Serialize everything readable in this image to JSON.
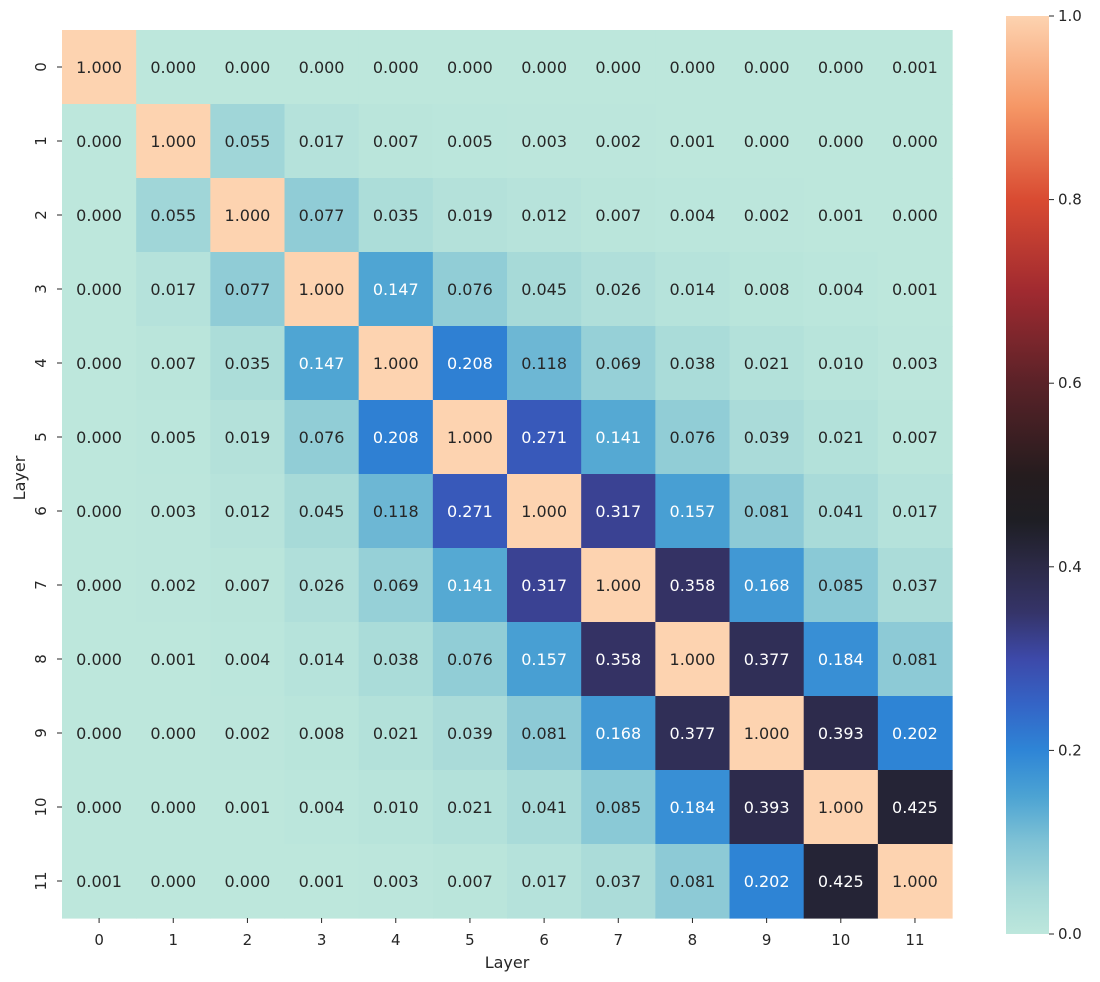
{
  "chart_data": {
    "type": "heatmap",
    "title": "",
    "xlabel": "Layer",
    "ylabel": "Layer",
    "x_categories": [
      "0",
      "1",
      "2",
      "3",
      "4",
      "5",
      "6",
      "7",
      "8",
      "9",
      "10",
      "11"
    ],
    "y_categories": [
      "0",
      "1",
      "2",
      "3",
      "4",
      "5",
      "6",
      "7",
      "8",
      "9",
      "10",
      "11"
    ],
    "values": [
      [
        1.0,
        0.0,
        0.0,
        0.0,
        0.0,
        0.0,
        0.0,
        0.0,
        0.0,
        0.0,
        0.0,
        0.001
      ],
      [
        0.0,
        1.0,
        0.055,
        0.017,
        0.007,
        0.005,
        0.003,
        0.002,
        0.001,
        0.0,
        0.0,
        0.0
      ],
      [
        0.0,
        0.055,
        1.0,
        0.077,
        0.035,
        0.019,
        0.012,
        0.007,
        0.004,
        0.002,
        0.001,
        0.0
      ],
      [
        0.0,
        0.017,
        0.077,
        1.0,
        0.147,
        0.076,
        0.045,
        0.026,
        0.014,
        0.008,
        0.004,
        0.001
      ],
      [
        0.0,
        0.007,
        0.035,
        0.147,
        1.0,
        0.208,
        0.118,
        0.069,
        0.038,
        0.021,
        0.01,
        0.003
      ],
      [
        0.0,
        0.005,
        0.019,
        0.076,
        0.208,
        1.0,
        0.271,
        0.141,
        0.076,
        0.039,
        0.021,
        0.007
      ],
      [
        0.0,
        0.003,
        0.012,
        0.045,
        0.118,
        0.271,
        1.0,
        0.317,
        0.157,
        0.081,
        0.041,
        0.017
      ],
      [
        0.0,
        0.002,
        0.007,
        0.026,
        0.069,
        0.141,
        0.317,
        1.0,
        0.358,
        0.168,
        0.085,
        0.037
      ],
      [
        0.0,
        0.001,
        0.004,
        0.014,
        0.038,
        0.076,
        0.157,
        0.358,
        1.0,
        0.377,
        0.184,
        0.081
      ],
      [
        0.0,
        0.0,
        0.002,
        0.008,
        0.021,
        0.039,
        0.081,
        0.168,
        0.377,
        1.0,
        0.393,
        0.202
      ],
      [
        0.0,
        0.0,
        0.001,
        0.004,
        0.01,
        0.021,
        0.041,
        0.085,
        0.184,
        0.393,
        1.0,
        0.425
      ],
      [
        0.001,
        0.0,
        0.0,
        0.001,
        0.003,
        0.007,
        0.017,
        0.037,
        0.081,
        0.202,
        0.425,
        1.0
      ]
    ],
    "value_format": "3 decimals",
    "colorbar": {
      "range": [
        0.0,
        1.0
      ],
      "ticks": [
        0.0,
        0.2,
        0.4,
        0.6,
        0.8,
        1.0
      ],
      "tick_labels": [
        "0.0",
        "0.2",
        "0.4",
        "0.6",
        "0.8",
        "1.0"
      ],
      "colormap": "icefire-like diverging (mint → blue → dark navy → red → peach)"
    },
    "colormap_stops": [
      [
        0.0,
        "#bde7dc"
      ],
      [
        0.05,
        "#a4d8d8"
      ],
      [
        0.1,
        "#7fc2d5"
      ],
      [
        0.15,
        "#4ca3d3"
      ],
      [
        0.2,
        "#2e85d6"
      ],
      [
        0.25,
        "#3464c6"
      ],
      [
        0.3,
        "#3d49a9"
      ],
      [
        0.35,
        "#353469"
      ],
      [
        0.4,
        "#2c2a47"
      ],
      [
        0.45,
        "#1e1e24"
      ],
      [
        0.5,
        "#251c1e"
      ],
      [
        0.6,
        "#5a2228"
      ],
      [
        0.7,
        "#a02a30"
      ],
      [
        0.8,
        "#d94b32"
      ],
      [
        0.9,
        "#f59665"
      ],
      [
        1.0,
        "#fdd3b0"
      ]
    ],
    "text_color_light": "#ffffff",
    "text_color_dark": "#262626",
    "grid": false
  }
}
